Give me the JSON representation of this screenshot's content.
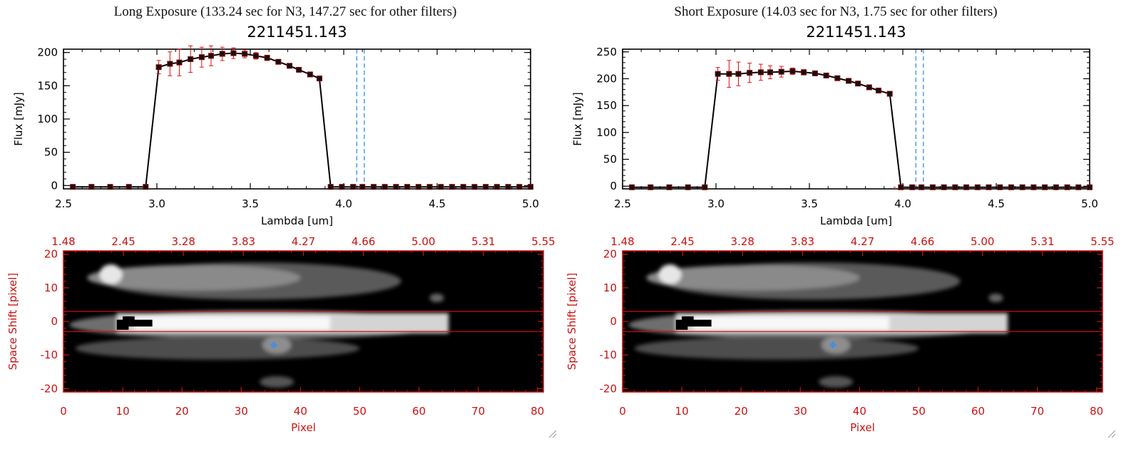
{
  "panels": [
    {
      "header": "Long Exposure (133.24 sec for N3, 147.27 sec for other filters)",
      "spectrum": {
        "title": "2211451.143",
        "xlabel": "Lambda [um]",
        "ylabel": "Flux [mJy]",
        "xticks": [
          "2.5",
          "3.0",
          "3.5",
          "4.0",
          "4.5",
          "5.0"
        ],
        "yticks": [
          "0",
          "50",
          "100",
          "150",
          "200"
        ]
      },
      "image": {
        "xlabel": "Pixel",
        "ylabel": "Space Shift [pixel]",
        "xticks": [
          "0",
          "10",
          "20",
          "30",
          "40",
          "50",
          "60",
          "70",
          "80"
        ],
        "yticks": [
          "20",
          "10",
          "0",
          "-10",
          "-20"
        ],
        "top_ticks": [
          "1.48",
          "2.45",
          "3.28",
          "3.83",
          "4.27",
          "4.66",
          "5.00",
          "5.31",
          "5.55"
        ]
      }
    },
    {
      "header": "Short Exposure (14.03 sec for N3, 1.75 sec for other filters)",
      "spectrum": {
        "title": "2211451.143",
        "xlabel": "Lambda [um]",
        "ylabel": "Flux [mJy]",
        "xticks": [
          "2.5",
          "3.0",
          "3.5",
          "4.0",
          "4.5",
          "5.0"
        ],
        "yticks": [
          "0",
          "50",
          "100",
          "150",
          "200",
          "250"
        ]
      },
      "image": {
        "xlabel": "Pixel",
        "ylabel": "Space Shift [pixel]",
        "xticks": [
          "0",
          "10",
          "20",
          "30",
          "40",
          "50",
          "60",
          "70",
          "80"
        ],
        "yticks": [
          "20",
          "10",
          "0",
          "-10",
          "-20"
        ],
        "top_ticks": [
          "1.48",
          "2.45",
          "3.28",
          "3.83",
          "4.27",
          "4.66",
          "5.00",
          "5.31",
          "5.55"
        ]
      }
    }
  ],
  "chart_data": [
    {
      "type": "line",
      "title": "2211451.143",
      "xlabel": "Lambda [um]",
      "ylabel": "Flux [mJy]",
      "xlim": [
        2.5,
        5.0
      ],
      "ylim": [
        -5,
        205
      ],
      "vlines": [
        4.07,
        4.11
      ],
      "series": [
        {
          "x": [
            2.55,
            2.65,
            2.75,
            2.85,
            2.94,
            3.01,
            3.07,
            3.12,
            3.18,
            3.24,
            3.29,
            3.35,
            3.41,
            3.47,
            3.53,
            3.59,
            3.65,
            3.71,
            3.76,
            3.82,
            3.87,
            3.93,
            3.99,
            4.05,
            4.1,
            4.16,
            4.22,
            4.28,
            4.34,
            4.4,
            4.46,
            4.52,
            4.58,
            4.64,
            4.7,
            4.76,
            4.82,
            4.88,
            4.94,
            5.0
          ],
          "y": [
            -2,
            -2,
            -2,
            -2,
            -2,
            178,
            183,
            185,
            190,
            193,
            195,
            198,
            199,
            198,
            195,
            192,
            186,
            180,
            174,
            167,
            161,
            -2,
            -2,
            -2,
            -2,
            -2,
            -2,
            -2,
            -2,
            -2,
            -2,
            -2,
            -2,
            -2,
            -2,
            -2,
            -2,
            -2,
            -2,
            -2
          ],
          "err": [
            0,
            0,
            0,
            0,
            0,
            10,
            18,
            20,
            20,
            15,
            15,
            10,
            8,
            6,
            5,
            4,
            3,
            2,
            2,
            2,
            2,
            0,
            0,
            0,
            0,
            0,
            0,
            0,
            0,
            0,
            0,
            0,
            0,
            0,
            0,
            0,
            0,
            0,
            0,
            0
          ]
        }
      ]
    },
    {
      "type": "heatmap",
      "xlabel": "Pixel",
      "ylabel": "Space Shift [pixel]",
      "xlim": [
        0,
        81
      ],
      "ylim": [
        -21,
        21
      ],
      "top_axis": [
        "1.48",
        "2.45",
        "3.28",
        "3.83",
        "4.27",
        "4.66",
        "5.00",
        "5.31",
        "5.55"
      ],
      "aperture_y": [
        3,
        -3
      ],
      "marker": [
        35.5,
        -7
      ]
    },
    {
      "type": "line",
      "title": "2211451.143",
      "xlabel": "Lambda [um]",
      "ylabel": "Flux [mJy]",
      "xlim": [
        2.5,
        5.0
      ],
      "ylim": [
        -5,
        255
      ],
      "vlines": [
        4.07,
        4.11
      ],
      "series": [
        {
          "x": [
            2.55,
            2.65,
            2.75,
            2.85,
            2.94,
            3.01,
            3.07,
            3.12,
            3.18,
            3.24,
            3.29,
            3.35,
            3.41,
            3.47,
            3.53,
            3.59,
            3.65,
            3.71,
            3.76,
            3.82,
            3.87,
            3.93,
            3.99,
            4.05,
            4.1,
            4.16,
            4.22,
            4.28,
            4.34,
            4.4,
            4.46,
            4.52,
            4.58,
            4.64,
            4.7,
            4.76,
            4.82,
            4.88,
            4.94,
            5.0
          ],
          "y": [
            -2,
            -2,
            -2,
            -2,
            -2,
            209,
            209,
            209,
            211,
            212,
            212,
            213,
            214,
            212,
            210,
            206,
            201,
            196,
            191,
            184,
            178,
            172,
            -2,
            -2,
            -2,
            -2,
            -2,
            -2,
            -2,
            -2,
            -2,
            -2,
            -2,
            -2,
            -2,
            -2,
            -2,
            -2,
            -2,
            -2
          ],
          "err": [
            0,
            0,
            0,
            0,
            0,
            12,
            25,
            22,
            18,
            15,
            12,
            10,
            6,
            5,
            4,
            3,
            3,
            2,
            2,
            2,
            2,
            2,
            0,
            0,
            0,
            0,
            0,
            0,
            0,
            0,
            0,
            0,
            0,
            0,
            0,
            0,
            0,
            0,
            0,
            0
          ]
        }
      ]
    },
    {
      "type": "heatmap",
      "xlabel": "Pixel",
      "ylabel": "Space Shift [pixel]",
      "xlim": [
        0,
        81
      ],
      "ylim": [
        -21,
        21
      ],
      "top_axis": [
        "1.48",
        "2.45",
        "3.28",
        "3.83",
        "4.27",
        "4.66",
        "5.00",
        "5.31",
        "5.55"
      ],
      "aperture_y": [
        3,
        -3
      ],
      "marker": [
        35.5,
        -7
      ]
    }
  ]
}
